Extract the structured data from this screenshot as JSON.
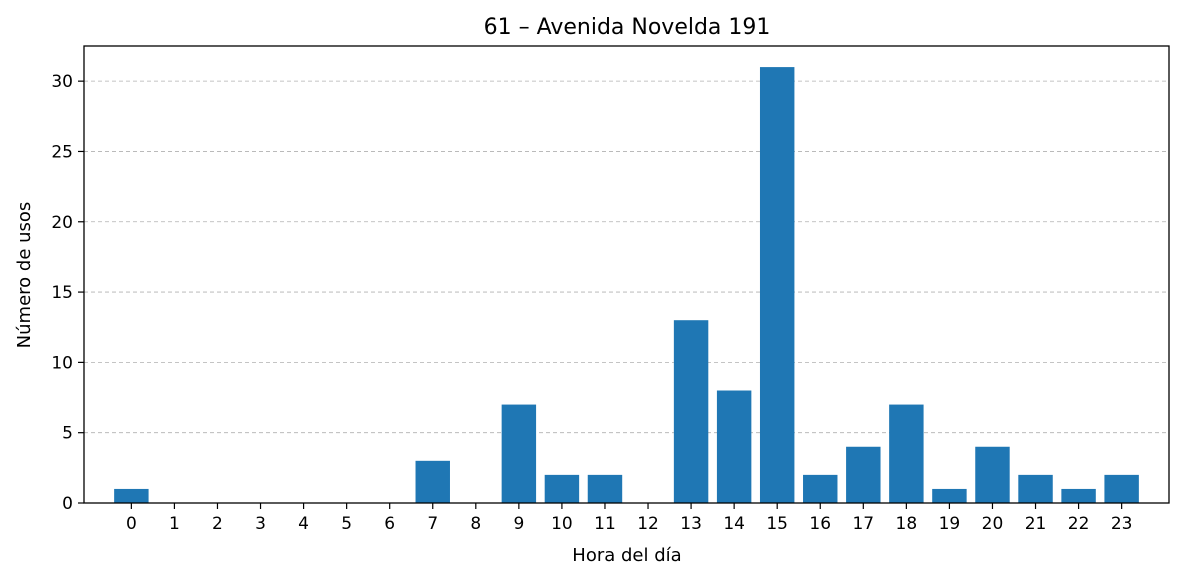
{
  "chart_data": {
    "type": "bar",
    "title": "61 – Avenida Novelda 191",
    "xlabel": "Hora del día",
    "ylabel": "Número de usos",
    "categories": [
      "0",
      "1",
      "2",
      "3",
      "4",
      "5",
      "6",
      "7",
      "8",
      "9",
      "10",
      "11",
      "12",
      "13",
      "14",
      "15",
      "16",
      "17",
      "18",
      "19",
      "20",
      "21",
      "22",
      "23"
    ],
    "values": [
      1,
      0,
      0,
      0,
      0,
      0,
      0,
      3,
      0,
      7,
      2,
      2,
      0,
      13,
      8,
      31,
      2,
      4,
      7,
      1,
      4,
      2,
      1,
      2
    ],
    "ylim": [
      0,
      32.5
    ],
    "yticks": [
      0,
      5,
      10,
      15,
      20,
      25,
      30
    ],
    "xlim": [
      -1.1,
      24.1
    ],
    "grid": "y-dashed",
    "bar_color": "#1f77b4"
  }
}
